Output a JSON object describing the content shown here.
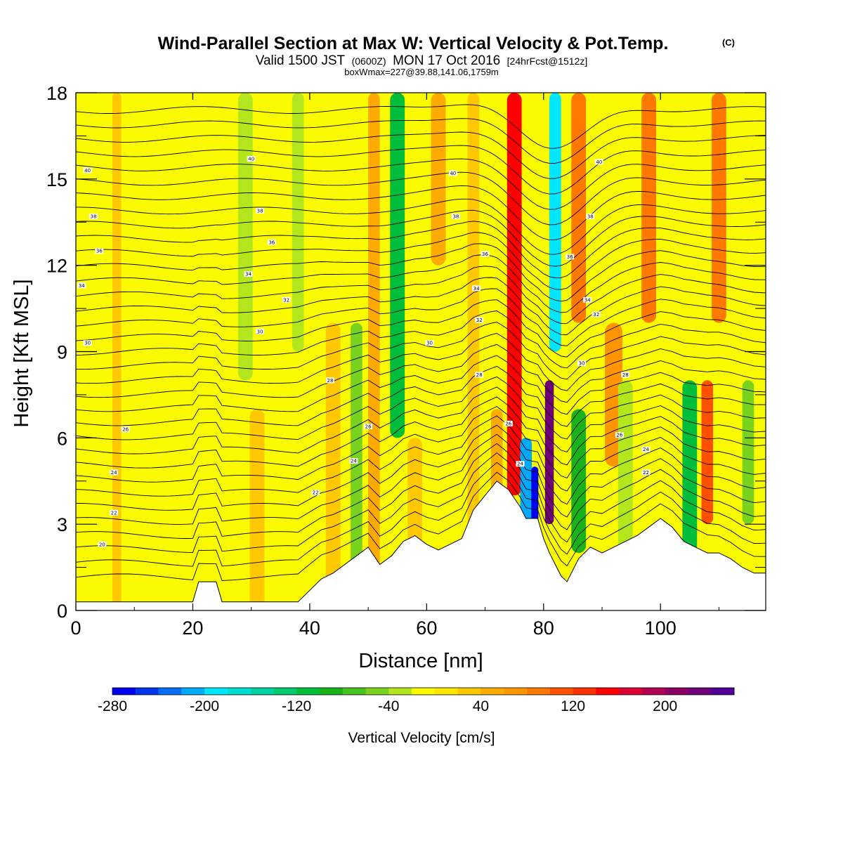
{
  "title": {
    "main": "Wind-Parallel Section at Max W: Vertical Velocity & Pot.Temp.",
    "copyright": "(C)",
    "valid_prefix": "Valid 1500 JST",
    "valid_utc": "(0600Z)",
    "valid_date": "MON 17 Oct 2016",
    "forecast": "[24hrFcst@1512z]",
    "boxwmax": "boxWmax=227@39.88,141.06,1759m"
  },
  "colorbar": {
    "title": "Vertical Velocity [cm/s]",
    "levels": [
      -280,
      -260,
      -240,
      -220,
      -200,
      -180,
      -160,
      -140,
      -120,
      -100,
      -80,
      -60,
      -40,
      -20,
      0,
      20,
      40,
      60,
      80,
      100,
      120,
      140,
      160,
      180,
      200,
      220,
      240
    ],
    "colors": [
      "#0000ee",
      "#0035f0",
      "#006ef5",
      "#00aaf8",
      "#00e6ff",
      "#00dcd2",
      "#00d1a0",
      "#00c96e",
      "#00bd3c",
      "#19b319",
      "#46c31e",
      "#78d21e",
      "#b4e61e",
      "#fafa00",
      "#ffe600",
      "#ffc800",
      "#ffaa00",
      "#ff9600",
      "#ff7800",
      "#ff5000",
      "#ff3200",
      "#ff0000",
      "#dc0032",
      "#b40050",
      "#8c0064",
      "#6e0078",
      "#500096"
    ],
    "tick_labels": [
      "-280",
      "-200",
      "-120",
      "-40",
      "40",
      "120",
      "200"
    ],
    "tick_values": [
      -280,
      -200,
      -120,
      -40,
      40,
      120,
      200
    ]
  },
  "chart_data": {
    "type": "heatmap",
    "title": "Wind-Parallel Section at Max W: Vertical Velocity & Pot.Temp.",
    "xlabel": "Distance [nm]",
    "ylabel": "Height [Kft MSL]",
    "xlim": [
      0,
      118
    ],
    "ylim": [
      0,
      18
    ],
    "x_ticks": [
      0,
      20,
      40,
      60,
      80,
      100
    ],
    "y_ticks": [
      0,
      3,
      6,
      9,
      12,
      15,
      18
    ],
    "x_tick_labels": [
      "0",
      "20",
      "40",
      "60",
      "80",
      "100"
    ],
    "y_tick_labels": [
      "0",
      "3",
      "6",
      "9",
      "12",
      "15",
      "18"
    ],
    "terrain": {
      "x": [
        0,
        20,
        21,
        24,
        25,
        38,
        40,
        42,
        44,
        46,
        48,
        50,
        52,
        54,
        56,
        58,
        60,
        62,
        64,
        66,
        68,
        70,
        72,
        74,
        76,
        77,
        78,
        79,
        80,
        81,
        82,
        83,
        84,
        86,
        88,
        90,
        92,
        94,
        96,
        98,
        100,
        102,
        104,
        106,
        108,
        110,
        112,
        114,
        116,
        118
      ],
      "y": [
        0.3,
        0.3,
        1.0,
        1.0,
        0.3,
        0.3,
        0.7,
        1.1,
        1.3,
        1.6,
        1.9,
        2.2,
        1.6,
        1.9,
        2.4,
        2.6,
        2.3,
        2.1,
        2.3,
        2.5,
        3.5,
        4.0,
        4.5,
        4.2,
        3.6,
        3.2,
        3.2,
        3.2,
        2.5,
        2.0,
        1.6,
        1.2,
        1.0,
        1.8,
        2.2,
        2.0,
        2.2,
        2.4,
        2.6,
        2.9,
        3.2,
        2.9,
        2.4,
        2.2,
        2.0,
        2.0,
        1.8,
        1.5,
        1.3,
        1.3
      ]
    },
    "w_features": [
      {
        "x": 7,
        "z_low": 0,
        "z_high": 18,
        "width": 1.5,
        "w": 25
      },
      {
        "x": 22,
        "z_low": 0,
        "z_high": 8,
        "width": 2,
        "w": -20
      },
      {
        "x": 29,
        "z_low": 8,
        "z_high": 18,
        "width": 2.5,
        "w": -30
      },
      {
        "x": 31,
        "z_low": 0,
        "z_high": 7,
        "width": 2.5,
        "w": 30
      },
      {
        "x": 38,
        "z_low": 9,
        "z_high": 18,
        "width": 2,
        "w": -25
      },
      {
        "x": 44,
        "z_low": 0,
        "z_high": 10,
        "width": 2.5,
        "w": 30
      },
      {
        "x": 48,
        "z_low": 0,
        "z_high": 10,
        "width": 2,
        "w": -45
      },
      {
        "x": 51,
        "z_low": 0,
        "z_high": 18,
        "width": 2,
        "w": 55
      },
      {
        "x": 55,
        "z_low": 6,
        "z_high": 18,
        "width": 2.5,
        "w": -110
      },
      {
        "x": 58,
        "z_low": 0,
        "z_high": 6,
        "width": 2.5,
        "w": 30
      },
      {
        "x": 62,
        "z_low": 12,
        "z_high": 18,
        "width": 2.5,
        "w": 45
      },
      {
        "x": 68,
        "z_low": 0,
        "z_high": 18,
        "width": 2,
        "w": 35
      },
      {
        "x": 72,
        "z_low": 2,
        "z_high": 7,
        "width": 2,
        "w": 50
      },
      {
        "x": 75,
        "z_low": 4,
        "z_high": 18,
        "width": 2.5,
        "w": 140
      },
      {
        "x": 77,
        "z_low": 3,
        "z_high": 6,
        "width": 2,
        "w": -210
      },
      {
        "x": 78.5,
        "z_low": 3,
        "z_high": 5,
        "width": 1.2,
        "w": -280
      },
      {
        "x": 81,
        "z_low": 3,
        "z_high": 8,
        "width": 1.5,
        "w": 227
      },
      {
        "x": 82,
        "z_low": 9,
        "z_high": 18,
        "width": 2,
        "w": -200
      },
      {
        "x": 86,
        "z_low": 2,
        "z_high": 7,
        "width": 2.5,
        "w": -100
      },
      {
        "x": 86,
        "z_low": 10,
        "z_high": 18,
        "width": 2.5,
        "w": 90
      },
      {
        "x": 92,
        "z_low": 5,
        "z_high": 10,
        "width": 3,
        "w": 60
      },
      {
        "x": 94,
        "z_low": 0,
        "z_high": 8,
        "width": 2.5,
        "w": -30
      },
      {
        "x": 98,
        "z_low": 10,
        "z_high": 18,
        "width": 2.5,
        "w": 80
      },
      {
        "x": 105,
        "z_low": 2,
        "z_high": 8,
        "width": 2.5,
        "w": -110
      },
      {
        "x": 108,
        "z_low": 3,
        "z_high": 8,
        "width": 2,
        "w": 110
      },
      {
        "x": 110,
        "z_low": 10,
        "z_high": 18,
        "width": 2.5,
        "w": 90
      },
      {
        "x": 115,
        "z_low": 3,
        "z_high": 8,
        "width": 2,
        "w": -50
      }
    ],
    "theta_contours": {
      "step": 1,
      "labels": [
        {
          "text": "40",
          "x": 2,
          "z": 15.3
        },
        {
          "text": "40",
          "x": 30,
          "z": 15.7
        },
        {
          "text": "40",
          "x": 64.5,
          "z": 15.2
        },
        {
          "text": "40",
          "x": 89.5,
          "z": 15.6
        },
        {
          "text": "38",
          "x": 3,
          "z": 13.7
        },
        {
          "text": "38",
          "x": 31.5,
          "z": 13.9
        },
        {
          "text": "38",
          "x": 65,
          "z": 13.7
        },
        {
          "text": "38",
          "x": 88,
          "z": 13.7
        },
        {
          "text": "36",
          "x": 4,
          "z": 12.5
        },
        {
          "text": "36",
          "x": 33.5,
          "z": 12.8
        },
        {
          "text": "36",
          "x": 70,
          "z": 12.4
        },
        {
          "text": "36",
          "x": 84.5,
          "z": 12.3
        },
        {
          "text": "34",
          "x": 1,
          "z": 11.3
        },
        {
          "text": "34",
          "x": 29.5,
          "z": 11.7
        },
        {
          "text": "34",
          "x": 68.5,
          "z": 11.2
        },
        {
          "text": "34",
          "x": 87.5,
          "z": 10.8
        },
        {
          "text": "32",
          "x": 36,
          "z": 10.8
        },
        {
          "text": "32",
          "x": 69,
          "z": 10.1
        },
        {
          "text": "32",
          "x": 89,
          "z": 10.3
        },
        {
          "text": "30",
          "x": 2,
          "z": 9.3
        },
        {
          "text": "30",
          "x": 31.5,
          "z": 9.7
        },
        {
          "text": "30",
          "x": 60.5,
          "z": 9.3
        },
        {
          "text": "30",
          "x": 86.5,
          "z": 8.6
        },
        {
          "text": "28",
          "x": 43.5,
          "z": 8.0
        },
        {
          "text": "28",
          "x": 69,
          "z": 8.2
        },
        {
          "text": "28",
          "x": 94,
          "z": 8.2
        },
        {
          "text": "26",
          "x": 8.5,
          "z": 6.3
        },
        {
          "text": "26",
          "x": 50,
          "z": 6.4
        },
        {
          "text": "26",
          "x": 74,
          "z": 6.5
        },
        {
          "text": "26",
          "x": 93,
          "z": 6.1
        },
        {
          "text": "24",
          "x": 6.5,
          "z": 4.8
        },
        {
          "text": "24",
          "x": 47.5,
          "z": 5.2
        },
        {
          "text": "24",
          "x": 76,
          "z": 5.1
        },
        {
          "text": "24",
          "x": 97.5,
          "z": 5.6
        },
        {
          "text": "22",
          "x": 6.5,
          "z": 3.4
        },
        {
          "text": "22",
          "x": 41,
          "z": 4.1
        },
        {
          "text": "22",
          "x": 97.5,
          "z": 4.8
        },
        {
          "text": "20",
          "x": 4.5,
          "z": 2.3
        }
      ]
    }
  }
}
